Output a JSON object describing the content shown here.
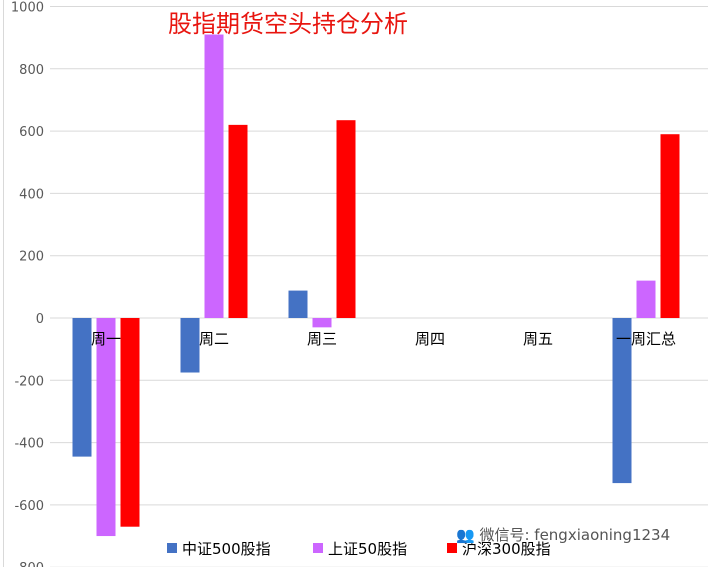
{
  "chart_data": {
    "type": "bar",
    "title": "股指期货空头持仓分析",
    "categories": [
      "周一",
      "周二",
      "周三",
      "周四",
      "周五",
      "一周汇总"
    ],
    "series": [
      {
        "name": "中证500股指",
        "values": [
          -445,
          -175,
          88,
          null,
          null,
          -530
        ],
        "color": "#4472c4"
      },
      {
        "name": "上证50股指",
        "values": [
          -700,
          910,
          -30,
          null,
          null,
          120
        ],
        "color": "#cc66ff"
      },
      {
        "name": "沪深300股指",
        "values": [
          -670,
          620,
          635,
          null,
          null,
          590
        ],
        "color": "#ff0000"
      }
    ],
    "ylim": [
      -800,
      1000
    ],
    "yticks": [
      1000,
      800,
      600,
      400,
      200,
      0,
      -200,
      -400,
      -600,
      -800
    ],
    "grid": true,
    "legend_position": "bottom"
  },
  "watermark": "微信号: fengxiaoning1234"
}
